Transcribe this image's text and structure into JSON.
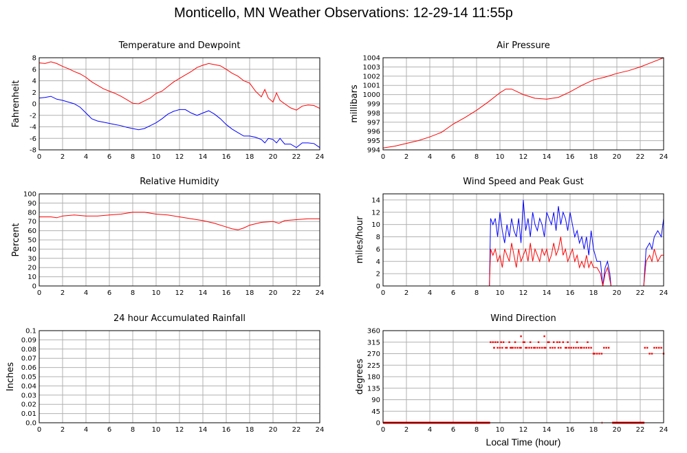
{
  "title": "Monticello, MN Weather Observations: 12-29-14 11:55p",
  "bottom_xlabel": "Local Time (hour)",
  "colors": {
    "red": "#ff0000",
    "blue": "#0000ff",
    "grid": "#b0b0b0",
    "frame": "#000000"
  },
  "chart_data": [
    {
      "id": "temp",
      "type": "line",
      "title": "Temperature and Dewpoint",
      "xlabel": "",
      "ylabel": "Fahrenheit",
      "xlim": [
        0,
        24
      ],
      "ylim": [
        -8,
        8
      ],
      "xticks": [
        0,
        2,
        4,
        6,
        8,
        10,
        12,
        14,
        16,
        18,
        20,
        22,
        24
      ],
      "yticks": [
        -8,
        -6,
        -4,
        -2,
        0,
        2,
        4,
        6,
        8
      ],
      "ytick_labels": [
        "-8",
        "-6",
        "-4",
        "-2",
        "0",
        "2",
        "4",
        "6",
        "8"
      ],
      "grid": true,
      "series": [
        {
          "color": "#ff0000",
          "mode": "line",
          "x": [
            0,
            0.5,
            1,
            1.5,
            2,
            2.5,
            3,
            3.5,
            4,
            4.5,
            5,
            5.5,
            6,
            6.5,
            7,
            7.5,
            8,
            8.5,
            9,
            9.5,
            10,
            10.5,
            11,
            11.5,
            12,
            12.5,
            13,
            13.5,
            14,
            14.5,
            15,
            15.5,
            16,
            16.5,
            17,
            17.5,
            18,
            18.5,
            19,
            19.3,
            19.6,
            20,
            20.3,
            20.6,
            21,
            21.5,
            22,
            22.5,
            23,
            23.5,
            24
          ],
          "y": [
            7.1,
            7.0,
            7.3,
            7.0,
            6.5,
            6.1,
            5.6,
            5.2,
            4.6,
            3.8,
            3.2,
            2.6,
            2.2,
            1.8,
            1.3,
            0.7,
            0.1,
            0.0,
            0.5,
            1.0,
            1.8,
            2.2,
            3.0,
            3.8,
            4.4,
            5.0,
            5.6,
            6.3,
            6.7,
            7.0,
            6.8,
            6.6,
            6.0,
            5.3,
            4.8,
            4.0,
            3.6,
            2.2,
            1.2,
            2.5,
            1.0,
            0.3,
            1.9,
            0.6,
            0.0,
            -0.7,
            -1.1,
            -0.4,
            -0.2,
            -0.3,
            -0.8
          ]
        },
        {
          "color": "#0000ff",
          "mode": "line",
          "x": [
            0,
            0.5,
            1,
            1.5,
            2,
            2.5,
            3,
            3.5,
            4,
            4.5,
            5,
            5.5,
            6,
            6.5,
            7,
            7.5,
            8,
            8.5,
            9,
            9.5,
            10,
            10.5,
            11,
            11.5,
            12,
            12.5,
            13,
            13.5,
            14,
            14.5,
            15,
            15.5,
            16,
            16.5,
            17,
            17.5,
            18,
            18.5,
            19,
            19.3,
            19.6,
            20,
            20.3,
            20.6,
            21,
            21.5,
            22,
            22.5,
            23,
            23.5,
            24
          ],
          "y": [
            1.0,
            1.1,
            1.3,
            0.8,
            0.6,
            0.3,
            0.0,
            -0.6,
            -1.6,
            -2.6,
            -3.0,
            -3.2,
            -3.4,
            -3.6,
            -3.8,
            -4.1,
            -4.3,
            -4.5,
            -4.3,
            -3.8,
            -3.3,
            -2.6,
            -1.8,
            -1.3,
            -1.0,
            -1.0,
            -1.6,
            -2.0,
            -1.6,
            -1.2,
            -1.8,
            -2.6,
            -3.6,
            -4.4,
            -5.0,
            -5.6,
            -5.6,
            -5.8,
            -6.2,
            -6.8,
            -6.0,
            -6.2,
            -6.8,
            -6.0,
            -7.0,
            -7.0,
            -7.6,
            -6.8,
            -6.8,
            -6.9,
            -7.6
          ]
        }
      ]
    },
    {
      "id": "pressure",
      "type": "line",
      "title": "Air Pressure",
      "xlabel": "",
      "ylabel": "millibars",
      "xlim": [
        0,
        24
      ],
      "ylim": [
        994,
        1004
      ],
      "xticks": [
        0,
        2,
        4,
        6,
        8,
        10,
        12,
        14,
        16,
        18,
        20,
        22,
        24
      ],
      "yticks": [
        994,
        995,
        996,
        997,
        998,
        999,
        1000,
        1001,
        1002,
        1003,
        1004
      ],
      "ytick_labels": [
        "994",
        "995",
        "996",
        "997",
        "998",
        "999",
        "1000",
        "1001",
        "1002",
        "1003",
        "1004"
      ],
      "grid": true,
      "series": [
        {
          "color": "#ff0000",
          "mode": "line",
          "x": [
            0,
            1,
            2,
            3,
            4,
            5,
            6,
            7,
            8,
            9,
            10,
            10.5,
            11,
            12,
            13,
            14,
            15,
            16,
            17,
            18,
            19,
            20,
            21,
            22,
            23,
            24
          ],
          "y": [
            994.2,
            994.4,
            994.7,
            995.0,
            995.4,
            995.9,
            996.8,
            997.5,
            998.3,
            999.2,
            1000.2,
            1000.6,
            1000.6,
            1000.0,
            999.6,
            999.5,
            999.7,
            1000.3,
            1001.0,
            1001.6,
            1001.9,
            1002.3,
            1002.6,
            1003.0,
            1003.5,
            1004.0
          ]
        }
      ]
    },
    {
      "id": "humidity",
      "type": "line",
      "title": "Relative Humidity",
      "xlabel": "",
      "ylabel": "Percent",
      "xlim": [
        0,
        24
      ],
      "ylim": [
        0,
        100
      ],
      "xticks": [
        0,
        2,
        4,
        6,
        8,
        10,
        12,
        14,
        16,
        18,
        20,
        22,
        24
      ],
      "yticks": [
        0,
        10,
        20,
        30,
        40,
        50,
        60,
        70,
        80,
        90,
        100
      ],
      "ytick_labels": [
        "0",
        "10",
        "20",
        "30",
        "40",
        "50",
        "60",
        "70",
        "80",
        "90",
        "100"
      ],
      "grid": true,
      "series": [
        {
          "color": "#ff0000",
          "mode": "line",
          "x": [
            0,
            1,
            1.5,
            2,
            3,
            4,
            5,
            6,
            7,
            8,
            9,
            10,
            11,
            12,
            13,
            14,
            15,
            16,
            16.5,
            17,
            17.5,
            18,
            19,
            20,
            20.5,
            21,
            22,
            23,
            24
          ],
          "y": [
            75,
            75,
            74,
            76,
            77,
            76,
            76,
            77,
            78,
            80,
            80,
            78,
            77,
            75,
            73,
            71,
            68,
            64,
            62,
            61,
            63,
            66,
            69,
            70,
            68,
            71,
            72,
            73,
            73
          ]
        }
      ]
    },
    {
      "id": "wind",
      "type": "line",
      "title": "Wind Speed and Peak Gust",
      "xlabel": "",
      "ylabel": "miles/hour",
      "xlim": [
        0,
        24
      ],
      "ylim": [
        0,
        15
      ],
      "xticks": [
        0,
        2,
        4,
        6,
        8,
        10,
        12,
        14,
        16,
        18,
        20,
        22,
        24
      ],
      "yticks": [
        0,
        2,
        4,
        6,
        8,
        10,
        12,
        14
      ],
      "ytick_labels": [
        "0",
        "2",
        "4",
        "6",
        "8",
        "10",
        "12",
        "14"
      ],
      "grid": true,
      "series": [
        {
          "color": "#0000ff",
          "mode": "line",
          "x": [
            0,
            9.1,
            9.2,
            9.4,
            9.6,
            9.8,
            10,
            10.2,
            10.4,
            10.6,
            10.8,
            11,
            11.2,
            11.4,
            11.6,
            11.8,
            12,
            12.2,
            12.4,
            12.6,
            12.8,
            13,
            13.2,
            13.4,
            13.6,
            13.8,
            14,
            14.2,
            14.4,
            14.6,
            14.8,
            15,
            15.2,
            15.4,
            15.6,
            15.8,
            16,
            16.2,
            16.4,
            16.6,
            16.8,
            17,
            17.2,
            17.4,
            17.6,
            17.8,
            18,
            18.3,
            18.6,
            18.8,
            19,
            19.2,
            19.4,
            19.5,
            20,
            21,
            22,
            22.3,
            22.5,
            22.8,
            23,
            23.2,
            23.5,
            23.8,
            24
          ],
          "y": [
            0,
            0,
            11,
            10,
            11,
            8,
            12,
            9,
            7,
            10,
            8,
            11,
            9,
            8,
            11,
            7,
            14,
            9,
            11,
            8,
            12,
            10,
            9,
            11,
            10,
            8,
            12,
            11,
            10,
            12,
            9,
            13,
            10,
            12,
            11,
            9,
            12,
            10,
            8,
            9,
            7,
            8,
            6,
            8,
            5,
            9,
            6,
            4,
            4,
            0,
            3,
            4,
            2,
            0,
            0,
            0,
            0,
            0,
            6,
            7,
            6,
            8,
            9,
            8,
            11
          ]
        },
        {
          "color": "#ff0000",
          "mode": "line",
          "x": [
            0,
            9.1,
            9.2,
            9.4,
            9.6,
            9.8,
            10,
            10.2,
            10.4,
            10.6,
            10.8,
            11,
            11.2,
            11.4,
            11.6,
            11.8,
            12,
            12.2,
            12.4,
            12.6,
            12.8,
            13,
            13.2,
            13.4,
            13.6,
            13.8,
            14,
            14.2,
            14.4,
            14.6,
            14.8,
            15,
            15.2,
            15.4,
            15.6,
            15.8,
            16,
            16.2,
            16.4,
            16.6,
            16.8,
            17,
            17.2,
            17.4,
            17.6,
            17.8,
            18,
            18.3,
            18.6,
            18.8,
            19,
            19.2,
            19.4,
            19.5,
            20,
            21,
            22,
            22.3,
            22.5,
            22.8,
            23,
            23.2,
            23.5,
            23.8,
            24
          ],
          "y": [
            0,
            0,
            6,
            5,
            6,
            4,
            5,
            3,
            6,
            5,
            4,
            7,
            5,
            3,
            6,
            4,
            5,
            6,
            4,
            7,
            4,
            6,
            5,
            4,
            6,
            5,
            6,
            4,
            5,
            7,
            5,
            6,
            8,
            5,
            6,
            4,
            5,
            6,
            4,
            5,
            3,
            4,
            3,
            5,
            3,
            4,
            3,
            3,
            2,
            0,
            2,
            3,
            1,
            0,
            0,
            0,
            0,
            0,
            4,
            5,
            4,
            6,
            4,
            5,
            5
          ]
        }
      ]
    },
    {
      "id": "rain",
      "type": "line",
      "title": "24 hour Accumulated Rainfall",
      "xlabel": "",
      "ylabel": "Inches",
      "xlim": [
        0,
        24
      ],
      "ylim": [
        0,
        0.1
      ],
      "xticks": [
        0,
        2,
        4,
        6,
        8,
        10,
        12,
        14,
        16,
        18,
        20,
        22,
        24
      ],
      "yticks": [
        0,
        0.01,
        0.02,
        0.03,
        0.04,
        0.05,
        0.06,
        0.07,
        0.08,
        0.09,
        0.1
      ],
      "ytick_labels": [
        "0.0",
        "0.01",
        "0.02",
        "0.03",
        "0.04",
        "0.05",
        "0.06",
        "0.07",
        "0.08",
        "0.09",
        "0.1"
      ],
      "grid": true,
      "series": [
        {
          "color": "#ff0000",
          "mode": "line",
          "x": [
            0,
            24
          ],
          "y": [
            0,
            0
          ]
        }
      ]
    },
    {
      "id": "direction",
      "type": "scatter",
      "title": "Wind Direction",
      "xlabel": "Local Time (hour)",
      "ylabel": "degrees",
      "xlim": [
        0,
        24
      ],
      "ylim": [
        0,
        360
      ],
      "xticks": [
        0,
        2,
        4,
        6,
        8,
        10,
        12,
        14,
        16,
        18,
        20,
        22,
        24
      ],
      "yticks": [
        0,
        45,
        90,
        135,
        180,
        225,
        270,
        315,
        360
      ],
      "ytick_labels": [
        "0",
        "45",
        "90",
        "135",
        "180",
        "225",
        "270",
        "315",
        "360"
      ],
      "grid": true,
      "series": [
        {
          "color": "#ff0000",
          "mode": "scatter",
          "x": [
            9.2,
            9.4,
            9.5,
            9.6,
            9.8,
            10.0,
            10.1,
            10.3,
            10.5,
            10.6,
            10.8,
            11.0,
            11.1,
            11.3,
            11.5,
            11.7,
            11.8,
            12.0,
            12.2,
            12.3,
            12.5,
            12.7,
            12.9,
            13.0,
            13.2,
            13.4,
            13.6,
            13.8,
            13.9,
            14.1,
            14.3,
            14.5,
            14.7,
            14.9,
            15.0,
            15.2,
            15.4,
            15.6,
            15.7,
            15.9,
            16.1,
            16.3,
            16.5,
            16.7,
            16.9,
            17.0,
            17.2,
            17.4,
            17.6,
            17.8,
            18.0,
            18.1,
            18.3,
            18.5,
            18.7,
            18.9,
            19.1,
            19.3,
            22.4,
            22.6,
            22.8,
            23.0,
            23.2,
            23.4,
            23.6,
            23.8,
            24.0,
            9.5,
            9.8,
            10.2,
            10.9,
            11.3,
            12.1,
            12.6,
            13.3,
            14.2,
            14.6,
            15.1,
            15.8,
            16.6,
            17.5,
            11.8,
            13.8
          ],
          "y": [
            315,
            315,
            293,
            315,
            315,
            293,
            315,
            315,
            293,
            293,
            315,
            293,
            293,
            315,
            293,
            293,
            293,
            315,
            293,
            293,
            293,
            293,
            293,
            293,
            293,
            293,
            293,
            293,
            293,
            315,
            293,
            293,
            293,
            315,
            293,
            293,
            315,
            293,
            293,
            293,
            293,
            293,
            293,
            293,
            293,
            293,
            293,
            293,
            293,
            293,
            270,
            270,
            270,
            270,
            270,
            293,
            293,
            293,
            293,
            293,
            270,
            270,
            293,
            293,
            293,
            293,
            270,
            293,
            293,
            293,
            293,
            293,
            315,
            315,
            315,
            315,
            315,
            315,
            315,
            315,
            315,
            338,
            338
          ]
        },
        {
          "color": "#ff0000",
          "mode": "hline",
          "segments": [
            [
              0,
              9.1
            ],
            [
              18.7,
              18.7
            ],
            [
              19.6,
              22.3
            ]
          ],
          "y": 0
        }
      ]
    }
  ]
}
